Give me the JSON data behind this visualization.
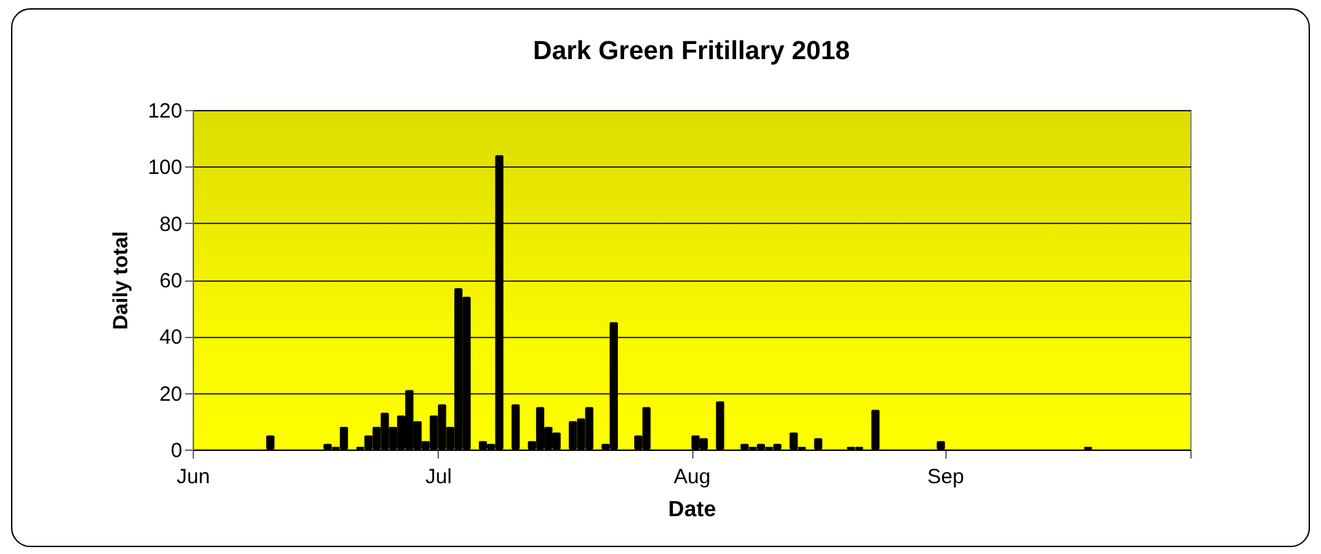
{
  "chart_data": {
    "type": "bar",
    "title": "Dark Green Fritillary 2018",
    "xlabel": "Date",
    "ylabel": "Daily total",
    "x": [
      "2018-06-10",
      "2018-06-17",
      "2018-06-18",
      "2018-06-19",
      "2018-06-21",
      "2018-06-22",
      "2018-06-23",
      "2018-06-24",
      "2018-06-25",
      "2018-06-26",
      "2018-06-27",
      "2018-06-28",
      "2018-06-29",
      "2018-06-30",
      "2018-07-01",
      "2018-07-02",
      "2018-07-03",
      "2018-07-04",
      "2018-07-06",
      "2018-07-07",
      "2018-07-08",
      "2018-07-10",
      "2018-07-12",
      "2018-07-13",
      "2018-07-14",
      "2018-07-15",
      "2018-07-17",
      "2018-07-18",
      "2018-07-19",
      "2018-07-21",
      "2018-07-22",
      "2018-07-25",
      "2018-07-26",
      "2018-08-01",
      "2018-08-02",
      "2018-08-04",
      "2018-08-07",
      "2018-08-08",
      "2018-08-09",
      "2018-08-10",
      "2018-08-11",
      "2018-08-13",
      "2018-08-14",
      "2018-08-16",
      "2018-08-20",
      "2018-08-21",
      "2018-08-23",
      "2018-08-31",
      "2018-09-18"
    ],
    "values": [
      5,
      2,
      1,
      8,
      1,
      5,
      8,
      13,
      8,
      12,
      21,
      10,
      3,
      12,
      16,
      8,
      57,
      54,
      3,
      2,
      104,
      16,
      3,
      15,
      8,
      6,
      10,
      11,
      15,
      2,
      45,
      5,
      15,
      5,
      4,
      17,
      2,
      1,
      2,
      1,
      2,
      6,
      1,
      4,
      1,
      1,
      14,
      3,
      1
    ],
    "color": "#000000",
    "xlim": [
      "2018-06-01",
      "2018-10-01"
    ],
    "xticks": [
      {
        "value": "2018-06-01",
        "label": "Jun"
      },
      {
        "value": "2018-07-01",
        "label": "Jul"
      },
      {
        "value": "2018-08-01",
        "label": "Aug"
      },
      {
        "value": "2018-09-01",
        "label": "Sep"
      },
      {
        "value": "2018-10-01",
        "label": null
      }
    ],
    "ylim": [
      0,
      120
    ],
    "yticks": [
      0,
      20,
      40,
      60,
      80,
      100,
      120
    ],
    "grid": "y"
  }
}
